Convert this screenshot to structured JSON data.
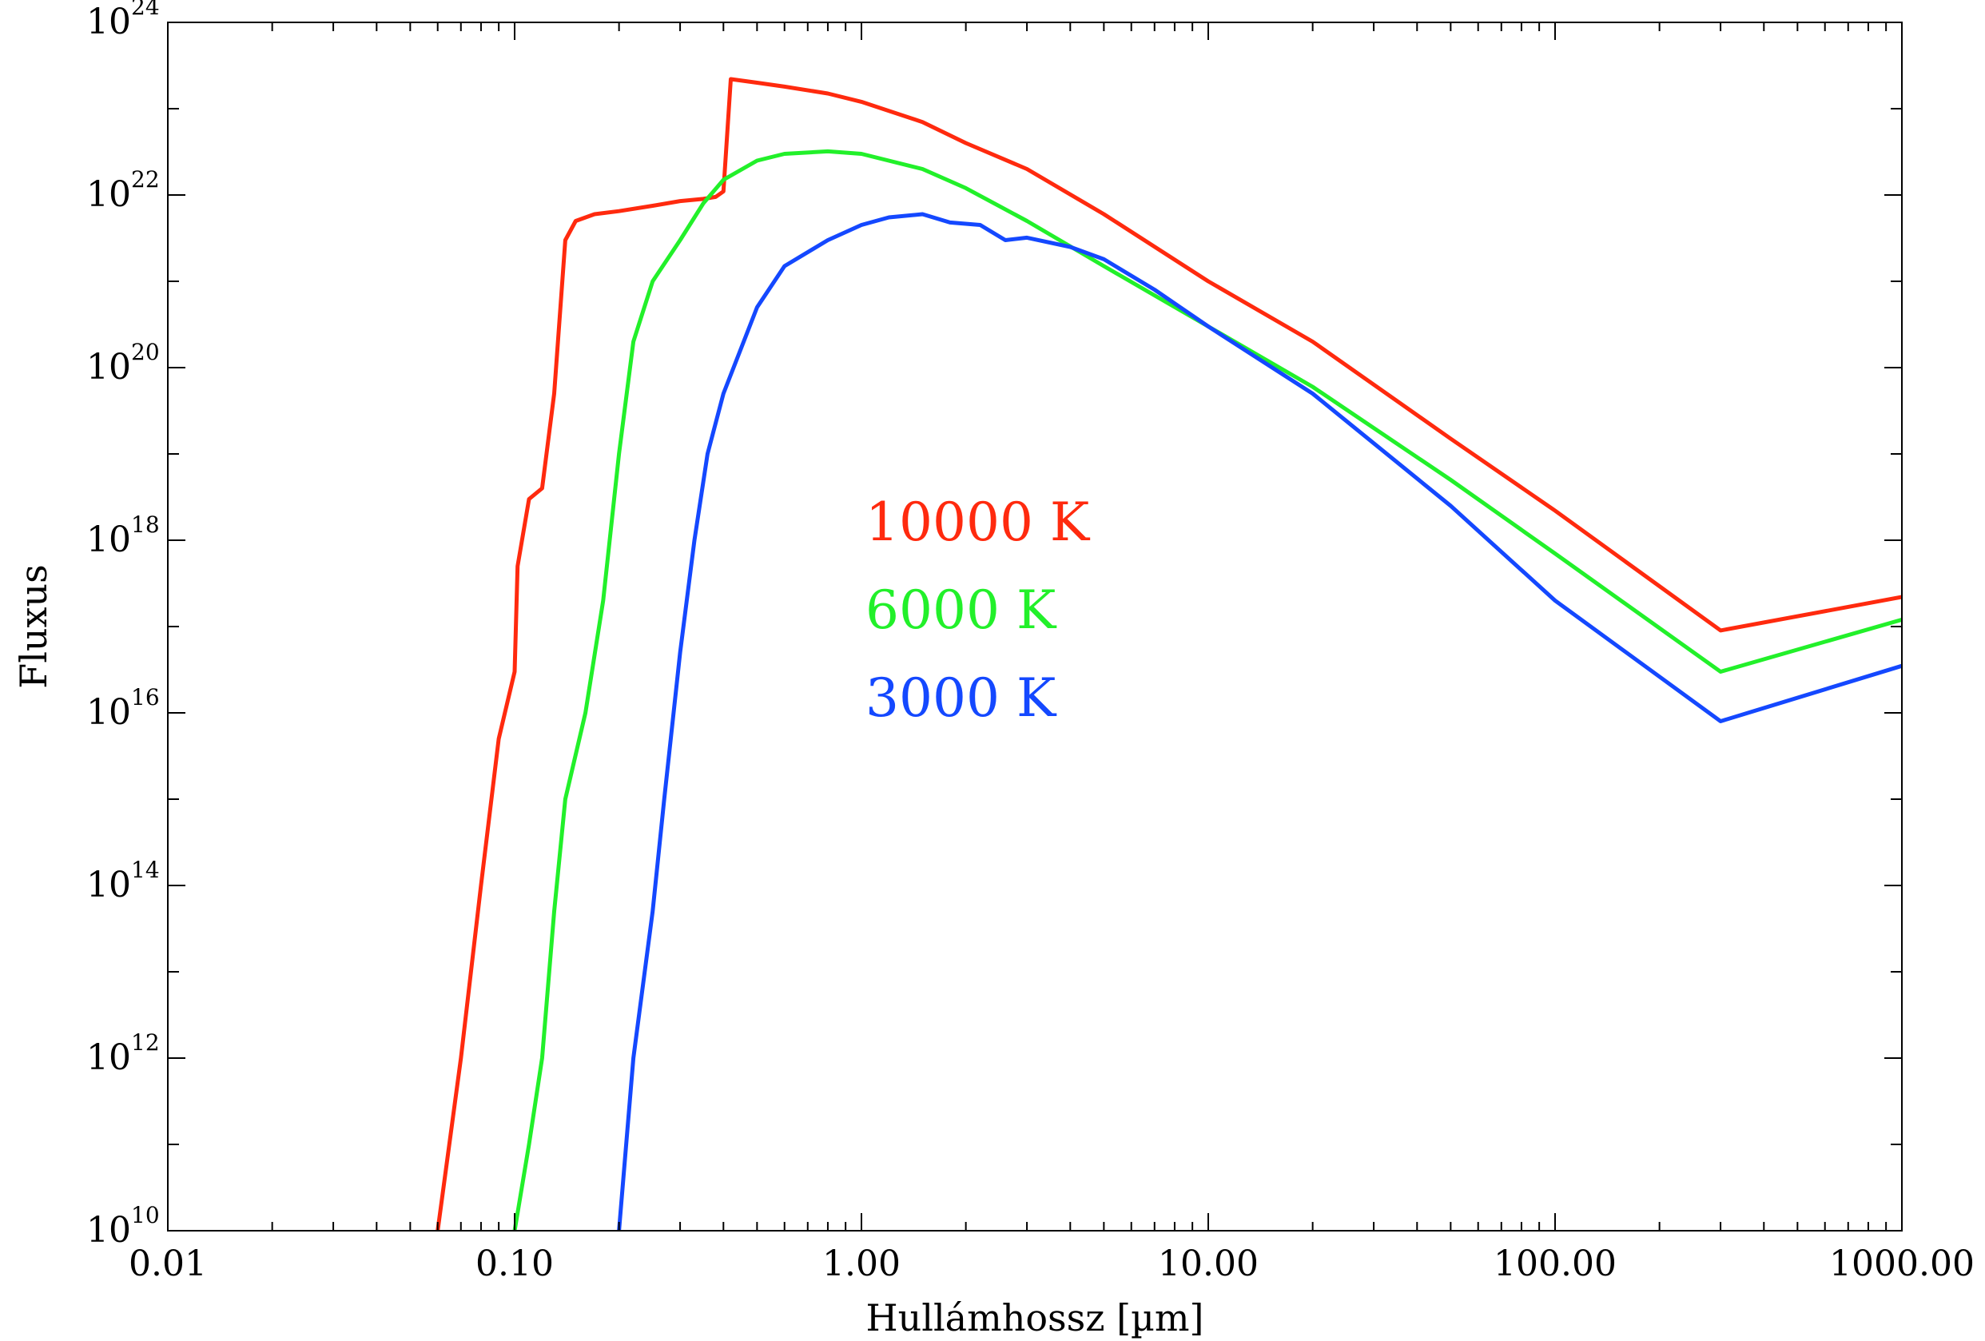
{
  "chart_data": {
    "type": "line",
    "title": "",
    "xlabel": "Hullámhossz [µm]",
    "ylabel": "Fluxus",
    "x_scale": "log",
    "y_scale": "log",
    "xlim": [
      0.01,
      1000
    ],
    "ylim": [
      10000000000.0,
      1e+24
    ],
    "grid": false,
    "legend_position": "center",
    "x_ticks": [
      {
        "value": 0.01,
        "label": "0.01"
      },
      {
        "value": 0.1,
        "label": "0.10"
      },
      {
        "value": 1,
        "label": "1.00"
      },
      {
        "value": 10,
        "label": "10.00"
      },
      {
        "value": 100,
        "label": "100.00"
      },
      {
        "value": 1000,
        "label": "1000.00"
      }
    ],
    "y_ticks": [
      {
        "value": 10000000000.0,
        "base": "10",
        "exp": "10"
      },
      {
        "value": 1000000000000.0,
        "base": "10",
        "exp": "12"
      },
      {
        "value": 100000000000000.0,
        "base": "10",
        "exp": "14"
      },
      {
        "value": 1e+16,
        "base": "10",
        "exp": "16"
      },
      {
        "value": 1e+18,
        "base": "10",
        "exp": "18"
      },
      {
        "value": 1e+20,
        "base": "10",
        "exp": "20"
      },
      {
        "value": 1e+22,
        "base": "10",
        "exp": "22"
      },
      {
        "value": 1e+24,
        "base": "10",
        "exp": "24"
      }
    ],
    "series": [
      {
        "name": "10000 K",
        "color": "#ff2a0e",
        "x": [
          0.06,
          0.07,
          0.08,
          0.09,
          0.1,
          0.102,
          0.11,
          0.12,
          0.13,
          0.14,
          0.15,
          0.17,
          0.2,
          0.25,
          0.3,
          0.35,
          0.38,
          0.4,
          0.42,
          0.5,
          0.6,
          0.8,
          1.0,
          1.5,
          2.0,
          3.0,
          5.0,
          10,
          20,
          50,
          100,
          300,
          1000
        ],
        "y": [
          10000000000.0,
          1000000000000.0,
          100000000000000.0,
          5000000000000000.0,
          3e+16,
          5e+17,
          3e+18,
          4e+18,
          5e+19,
          3e+21,
          5e+21,
          6e+21,
          6.5e+21,
          7.5e+21,
          8.5e+21,
          9e+21,
          9.5e+21,
          1.1e+22,
          2.2e+23,
          2e+23,
          1.8e+23,
          1.5e+23,
          1.2e+23,
          7e+22,
          4e+22,
          2e+22,
          6e+21,
          1e+21,
          2e+20,
          1.5e+19,
          2.2e+18,
          9e+16,
          2.2e+17
        ]
      },
      {
        "name": "6000 K",
        "color": "#22f02a",
        "x": [
          0.1,
          0.11,
          0.12,
          0.13,
          0.14,
          0.16,
          0.18,
          0.2,
          0.22,
          0.25,
          0.3,
          0.35,
          0.4,
          0.5,
          0.6,
          0.8,
          1.0,
          1.5,
          2.0,
          3.0,
          5.0,
          10,
          20,
          50,
          100,
          300,
          1000
        ],
        "y": [
          10000000000.0,
          100000000000.0,
          1000000000000.0,
          50000000000000.0,
          1000000000000000.0,
          1e+16,
          2e+17,
          1e+19,
          2e+20,
          1e+21,
          3e+21,
          8e+21,
          1.5e+22,
          2.5e+22,
          3e+22,
          3.2e+22,
          3e+22,
          2e+22,
          1.2e+22,
          5e+21,
          1.5e+21,
          3e+20,
          6e+19,
          5e+18,
          7e+17,
          3e+16,
          1.2e+17
        ]
      },
      {
        "name": "3000 K",
        "color": "#1448ff",
        "x": [
          0.2,
          0.22,
          0.25,
          0.27,
          0.3,
          0.33,
          0.36,
          0.4,
          0.5,
          0.6,
          0.8,
          1.0,
          1.2,
          1.5,
          1.8,
          2.2,
          2.6,
          3.0,
          4.0,
          5.0,
          7.0,
          10,
          20,
          50,
          100,
          300,
          1000
        ],
        "y": [
          10000000000.0,
          1000000000000.0,
          50000000000000.0,
          1000000000000000.0,
          5e+16,
          1e+18,
          1e+19,
          5e+19,
          5e+20,
          1.5e+21,
          3e+21,
          4.5e+21,
          5.5e+21,
          6e+21,
          4.8e+21,
          4.5e+21,
          3e+21,
          3.2e+21,
          2.5e+21,
          1.8e+21,
          8e+20,
          3e+20,
          5e+19,
          2.5e+18,
          2e+17,
          8000000000000000.0,
          3.5e+16
        ]
      }
    ]
  }
}
